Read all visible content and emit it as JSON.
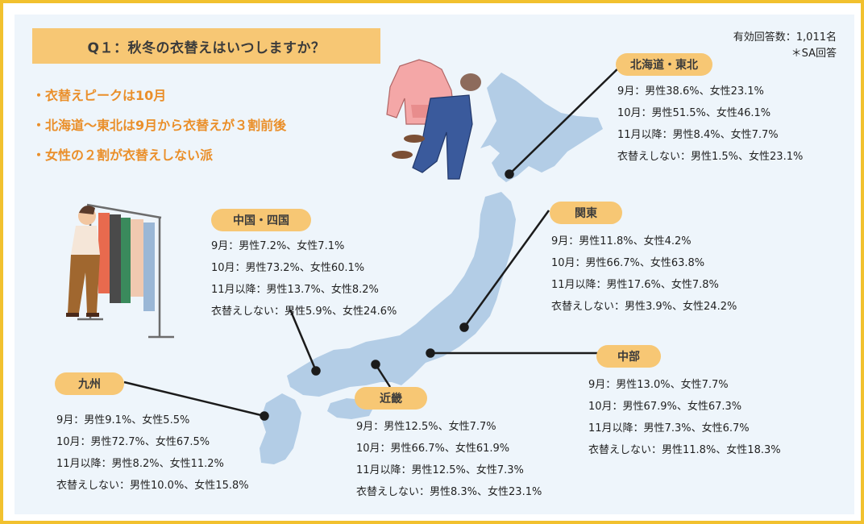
{
  "title": "Q１：秋冬の衣替えはいつしますか？",
  "meta": {
    "respondents": "有効回答数：1,011名",
    "answer_type": "＊SA回答"
  },
  "bullets": [
    "衣替えピークは10月",
    "北海道〜東北は9月から衣替えが３割前後",
    "女性の２割が衣替えしない派"
  ],
  "colors": {
    "title_bg": "#f7c774",
    "bullet_text": "#ea8f2a",
    "map_fill": "#b3cde6",
    "frame": "#f2c12e",
    "panel_bg": "#eef5fb"
  },
  "regions": {
    "hokkaido": {
      "name": "北海道・東北",
      "lines": [
        "9月：男性38.6%、女性23.1%",
        "10月：男性51.5%、女性46.1%",
        "11月以降：男性8.4%、女性7.7%",
        "衣替えしない：男性1.5%、女性23.1%"
      ]
    },
    "kanto": {
      "name": "関東",
      "lines": [
        "9月：男性11.8%、女性4.2%",
        "10月：男性66.7%、女性63.8%",
        "11月以降：男性17.6%、女性7.8%",
        "衣替えしない：男性3.9%、女性24.2%"
      ]
    },
    "chubu": {
      "name": "中部",
      "lines": [
        "9月：男性13.0%、女性7.7%",
        "10月：男性67.9%、女性67.3%",
        "11月以降：男性7.3%、女性6.7%",
        "衣替えしない：男性11.8%、女性18.3%"
      ]
    },
    "chugoku": {
      "name": "中国・四国",
      "lines": [
        "9月：男性7.2%、女性7.1%",
        "10月：男性73.2%、女性60.1%",
        "11月以降：男性13.7%、女性8.2%",
        "衣替えしない：男性5.9%、女性24.6%"
      ]
    },
    "kinki": {
      "name": "近畿",
      "lines": [
        "9月：男性12.5%、女性7.7%",
        "10月：男性66.7%、女性61.9%",
        "11月以降：男性12.5%、女性7.3%",
        "衣替えしない：男性8.3%、女性23.1%"
      ]
    },
    "kyushu": {
      "name": "九州",
      "lines": [
        "9月：男性9.1%、女性5.5%",
        "10月：男性72.7%、女性67.5%",
        "11月以降：男性8.2%、女性11.2%",
        "衣替えしない：男性10.0%、女性15.8%"
      ]
    }
  }
}
